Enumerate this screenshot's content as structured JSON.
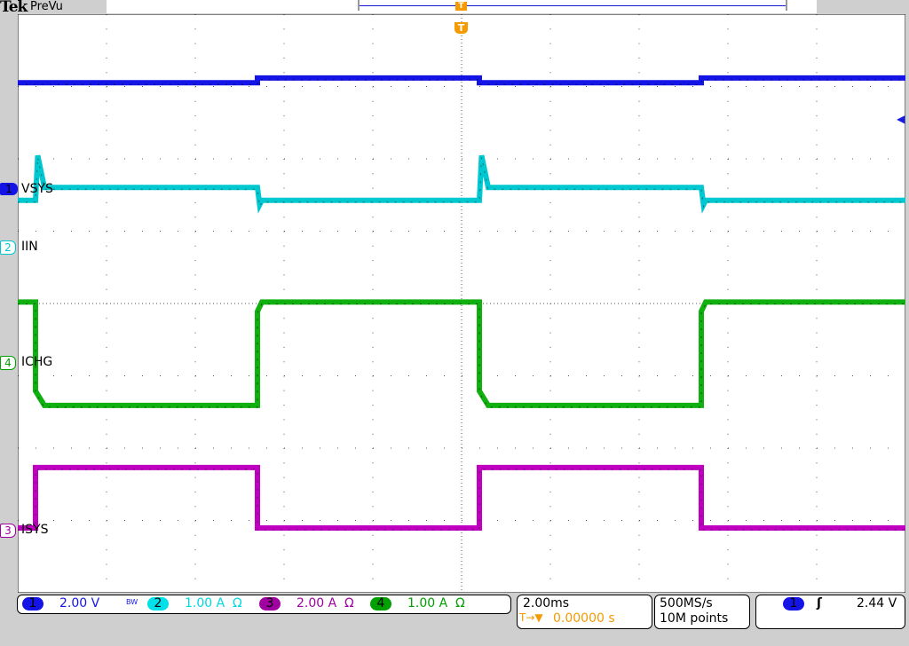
{
  "header": {
    "brand": "Tek",
    "mode": "PreVu"
  },
  "trigger_marker": "T",
  "channels": [
    {
      "num": "1",
      "label": "VSYS",
      "scale": "2.00 V",
      "color": "#1414e6",
      "bw": "BW"
    },
    {
      "num": "2",
      "label": "IIN",
      "scale": "1.00 A",
      "unit_icon": "Ω",
      "color": "#00d8e0"
    },
    {
      "num": "3",
      "label": "ISYS",
      "scale": "2.00 A",
      "unit_icon": "Ω",
      "color": "#a000a0"
    },
    {
      "num": "4",
      "label": "ICHG",
      "scale": "1.00 A",
      "unit_icon": "Ω",
      "color": "#00a000"
    }
  ],
  "timebase": {
    "scale": "2.00ms",
    "delay": "0.00000 s",
    "trigger_icon": "T→▼"
  },
  "acquisition": {
    "rate": "500MS/s",
    "length": "10M points"
  },
  "trigger": {
    "source": "1",
    "slope_icon": "rising-edge",
    "level": "2.44 V"
  },
  "chart_data": {
    "type": "line",
    "xlabel": "",
    "ylabel": "",
    "x_unit": "ms",
    "xlim": [
      -10,
      10
    ],
    "divisions": [
      10,
      8
    ],
    "grid": true,
    "series": [
      {
        "channel": "1",
        "name": "VSYS",
        "color": "#1414e6",
        "unit": "V",
        "per_div": 2,
        "points": [
          [
            -10,
            2.94
          ],
          [
            -4.6,
            2.94
          ],
          [
            -4.6,
            3.07
          ],
          [
            0.4,
            3.07
          ],
          [
            0.4,
            2.94
          ],
          [
            5.4,
            2.94
          ],
          [
            5.4,
            3.07
          ],
          [
            10,
            3.07
          ]
        ]
      },
      {
        "channel": "2",
        "name": "IIN",
        "color": "#00c8d0",
        "unit": "A",
        "per_div": 1,
        "points": [
          [
            -10,
            0.64
          ],
          [
            -9.6,
            0.64
          ],
          [
            -9.55,
            1.26
          ],
          [
            -9.4,
            0.82
          ],
          [
            -4.6,
            0.82
          ],
          [
            -4.55,
            0.58
          ],
          [
            -4.5,
            0.64
          ],
          [
            0.4,
            0.64
          ],
          [
            0.45,
            1.26
          ],
          [
            0.6,
            0.82
          ],
          [
            5.4,
            0.82
          ],
          [
            5.45,
            0.58
          ],
          [
            5.5,
            0.64
          ],
          [
            10,
            0.64
          ]
        ]
      },
      {
        "channel": "3",
        "name": "ISYS",
        "color": "#c000c0",
        "unit": "A",
        "per_div": 2,
        "points": [
          [
            -10,
            0.05
          ],
          [
            -9.6,
            0.05
          ],
          [
            -9.6,
            1.72
          ],
          [
            -4.6,
            1.72
          ],
          [
            -4.6,
            0.05
          ],
          [
            0.4,
            0.05
          ],
          [
            0.4,
            1.72
          ],
          [
            5.4,
            1.72
          ],
          [
            5.4,
            0.05
          ],
          [
            10,
            0.05
          ]
        ]
      },
      {
        "channel": "4",
        "name": "ICHG",
        "color": "#10b010",
        "unit": "A",
        "per_div": 1,
        "points": [
          [
            -10,
            0.83
          ],
          [
            -9.6,
            0.83
          ],
          [
            -9.6,
            -0.4
          ],
          [
            -9.4,
            -0.6
          ],
          [
            -4.6,
            -0.6
          ],
          [
            -4.6,
            0.7
          ],
          [
            -4.5,
            0.83
          ],
          [
            0.4,
            0.83
          ],
          [
            0.4,
            -0.4
          ],
          [
            0.6,
            -0.6
          ],
          [
            5.4,
            -0.6
          ],
          [
            5.4,
            0.7
          ],
          [
            5.5,
            0.83
          ],
          [
            10,
            0.83
          ]
        ]
      }
    ]
  }
}
